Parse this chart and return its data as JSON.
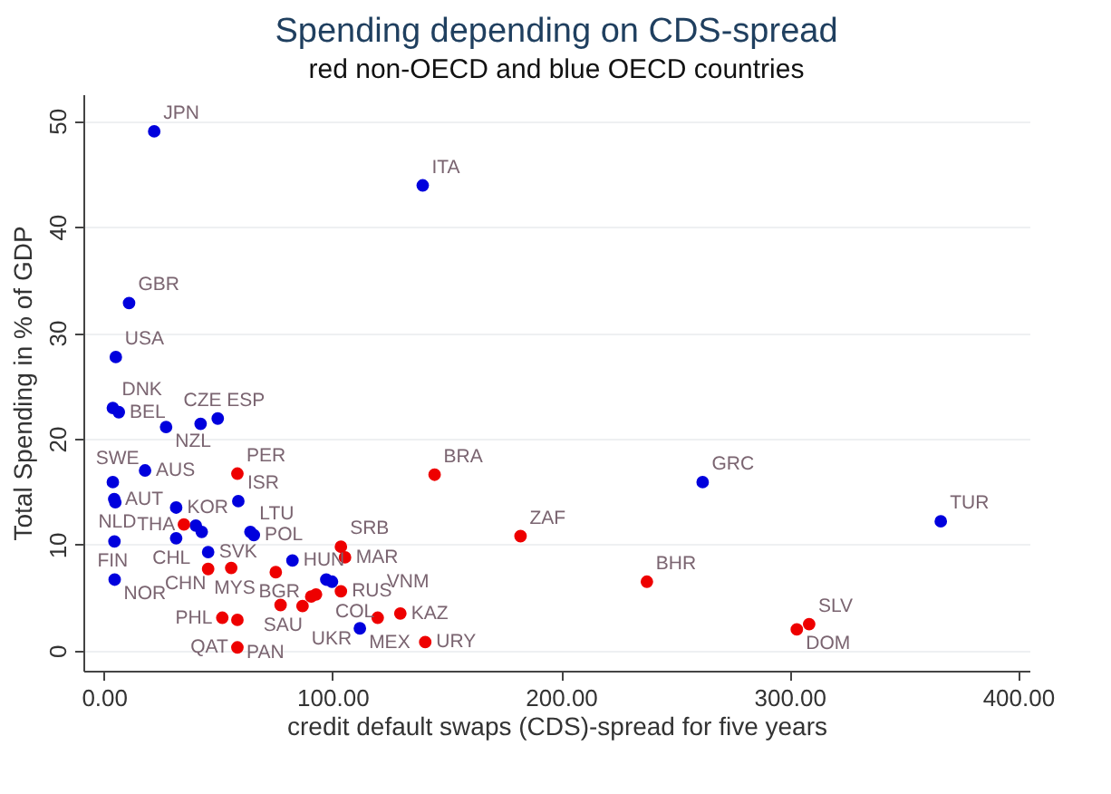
{
  "chart_data": {
    "type": "scatter",
    "title": "Spending depending on CDS-spread",
    "subtitle": "red non-OECD and blue OECD countries",
    "xlabel": "credit default swaps (CDS)-spread for five years",
    "ylabel": "Total Spending in % of GDP",
    "xlim": [
      -9,
      405
    ],
    "ylim": [
      -1.9,
      52.5
    ],
    "xticks": [
      {
        "value": 0,
        "label": "0.00"
      },
      {
        "value": 100,
        "label": "100.00"
      },
      {
        "value": 200,
        "label": "200.00"
      },
      {
        "value": 300,
        "label": "300.00"
      },
      {
        "value": 400,
        "label": "400.00"
      }
    ],
    "yticks": [
      0,
      10,
      20,
      30,
      40,
      50
    ],
    "grid": "y",
    "marker": "circle",
    "series": [
      {
        "color": "#0000dd",
        "x": [
          22,
          139.5,
          11,
          5.2,
          3.9,
          6.5,
          27.2,
          42.3,
          49.8,
          3.9,
          18,
          4.5,
          5,
          58.8,
          31.6,
          40.2,
          42.8,
          31.6,
          45.6,
          64.1,
          65.6,
          82.5,
          97.3,
          99.8,
          112,
          4.6,
          4.7,
          262,
          366.2
        ],
        "values": [
          49.0,
          43.9,
          32.8,
          27.7,
          22.9,
          22.5,
          21.1,
          21.4,
          21.9,
          15.9,
          17.0,
          14.3,
          14.0,
          14.1,
          13.5,
          11.8,
          11.2,
          10.6,
          9.3,
          11.2,
          10.9,
          8.5,
          6.7,
          6.5,
          2.1,
          10.3,
          6.7,
          15.9,
          12.2
        ]
      },
      {
        "color": "#ee0000",
        "x": [
          58.4,
          35,
          45.6,
          55.7,
          75.2,
          103.7,
          105.5,
          103.7,
          77.3,
          86.9,
          90.7,
          92.8,
          51.8,
          58.4,
          58.4,
          119.8,
          129.7,
          140.6,
          144.7,
          182.3,
          237.6,
          303.2,
          308.6
        ],
        "values": [
          16.7,
          11.9,
          7.7,
          7.8,
          7.4,
          9.8,
          8.8,
          5.6,
          4.3,
          4.2,
          5.1,
          5.3,
          3.1,
          2.9,
          0.3,
          3.1,
          3.5,
          0.8,
          16.6,
          10.8,
          6.5,
          2.0,
          2.5
        ]
      }
    ],
    "annotations": [
      {
        "text": "JPN",
        "x": 22,
        "y": 49.0
      },
      {
        "text": "ITA",
        "x": 139.5,
        "y": 43.9
      },
      {
        "text": "GBR",
        "x": 11,
        "y": 32.8
      },
      {
        "text": "USA",
        "x": 5.2,
        "y": 27.7
      },
      {
        "text": "DNK",
        "x": 3.9,
        "y": 22.9
      },
      {
        "text": "BEL",
        "x": 6.5,
        "y": 22.5
      },
      {
        "text": "NZL",
        "x": 27.2,
        "y": 21.1
      },
      {
        "text": "CZE",
        "x": 42.3,
        "y": 21.4
      },
      {
        "text": "ESP",
        "x": 49.8,
        "y": 21.9
      },
      {
        "text": "SWE",
        "x": 3.9,
        "y": 15.9
      },
      {
        "text": "AUS",
        "x": 18,
        "y": 17.0
      },
      {
        "text": "AUT",
        "x": 4.5,
        "y": 14.3
      },
      {
        "text": "NLD",
        "x": 5,
        "y": 14.0
      },
      {
        "text": "ISR",
        "x": 58.8,
        "y": 14.1
      },
      {
        "text": "KOR",
        "x": 31.6,
        "y": 13.5
      },
      {
        "text": "CHL",
        "x": 40.2,
        "y": 11.8
      },
      {
        "text": "SVK",
        "x": 45.6,
        "y": 9.3
      },
      {
        "text": "LTU",
        "x": 64.1,
        "y": 11.2
      },
      {
        "text": "POL",
        "x": 65.6,
        "y": 10.9
      },
      {
        "text": "HUN",
        "x": 82.5,
        "y": 8.5
      },
      {
        "text": "COL",
        "x": 97.3,
        "y": 6.7
      },
      {
        "text": "MEX",
        "x": 112,
        "y": 2.1
      },
      {
        "text": "FIN",
        "x": 4.6,
        "y": 10.3
      },
      {
        "text": "NOR",
        "x": 4.7,
        "y": 6.7
      },
      {
        "text": "GRC",
        "x": 262,
        "y": 15.9
      },
      {
        "text": "TUR",
        "x": 366.2,
        "y": 12.2
      },
      {
        "text": "PER",
        "x": 58.4,
        "y": 16.7
      },
      {
        "text": "THA",
        "x": 35,
        "y": 11.9
      },
      {
        "text": "CHN",
        "x": 45.6,
        "y": 7.7
      },
      {
        "text": "MYS",
        "x": 55.7,
        "y": 7.8
      },
      {
        "text": "BGR",
        "x": 75.2,
        "y": 7.4
      },
      {
        "text": "SRB",
        "x": 103.7,
        "y": 9.8
      },
      {
        "text": "MAR",
        "x": 105.5,
        "y": 8.8
      },
      {
        "text": "RUS",
        "x": 103.7,
        "y": 5.6
      },
      {
        "text": "SAU",
        "x": 77.3,
        "y": 4.3
      },
      {
        "text": "UKR",
        "x": 86.9,
        "y": 4.2
      },
      {
        "text": "PHL",
        "x": 51.8,
        "y": 3.1
      },
      {
        "text": "PAN",
        "x": 58.4,
        "y": 2.9
      },
      {
        "text": "QAT",
        "x": 58.4,
        "y": 0.3
      },
      {
        "text": "VNM",
        "x": 119.8,
        "y": 3.1
      },
      {
        "text": "KAZ",
        "x": 129.7,
        "y": 3.5
      },
      {
        "text": "URY",
        "x": 140.6,
        "y": 0.8
      },
      {
        "text": "BRA",
        "x": 144.7,
        "y": 16.6
      },
      {
        "text": "ZAF",
        "x": 182.3,
        "y": 10.8
      },
      {
        "text": "BHR",
        "x": 237.6,
        "y": 6.5
      },
      {
        "text": "DOM",
        "x": 303.2,
        "y": 2.0
      },
      {
        "text": "SLV",
        "x": 308.6,
        "y": 2.5
      }
    ]
  }
}
